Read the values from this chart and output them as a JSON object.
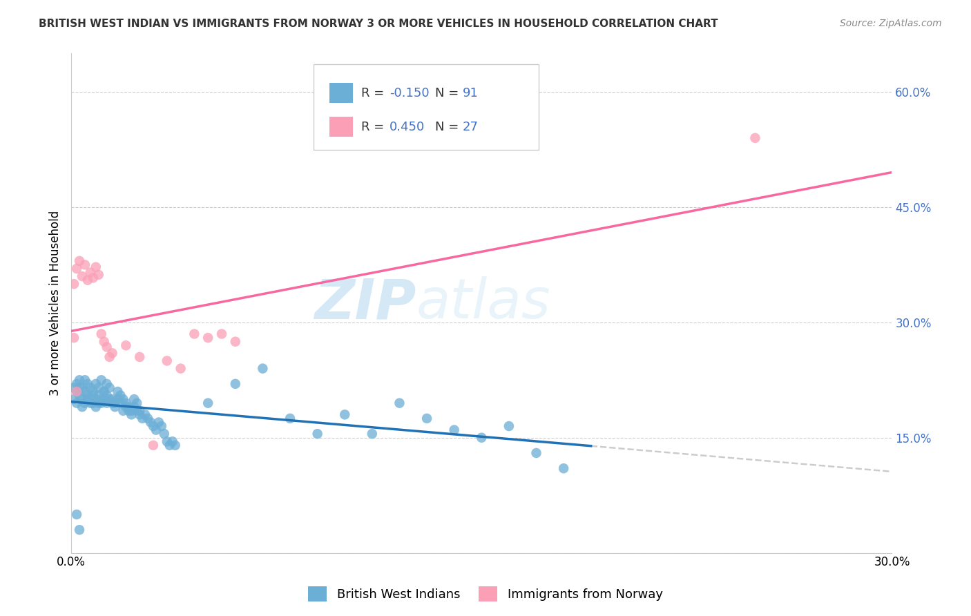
{
  "title": "BRITISH WEST INDIAN VS IMMIGRANTS FROM NORWAY 3 OR MORE VEHICLES IN HOUSEHOLD CORRELATION CHART",
  "source": "Source: ZipAtlas.com",
  "ylabel": "3 or more Vehicles in Household",
  "xmin": 0.0,
  "xmax": 0.3,
  "ymin": 0.0,
  "ymax": 0.65,
  "yticks": [
    0.0,
    0.15,
    0.3,
    0.45,
    0.6
  ],
  "ytick_labels": [
    "",
    "15.0%",
    "30.0%",
    "45.0%",
    "60.0%"
  ],
  "xtick_vals": [
    0.0,
    0.05,
    0.1,
    0.15,
    0.2,
    0.25,
    0.3
  ],
  "xtick_labels": [
    "0.0%",
    "",
    "",
    "",
    "",
    "",
    "30.0%"
  ],
  "blue_R": -0.15,
  "blue_N": 91,
  "pink_R": 0.45,
  "pink_N": 27,
  "blue_color": "#6baed6",
  "pink_color": "#fa9fb5",
  "blue_line_color": "#2171b5",
  "pink_line_color": "#f768a1",
  "dash_line_color": "#cccccc",
  "legend1_label": "British West Indians",
  "legend2_label": "Immigrants from Norway",
  "watermark_zip": "ZIP",
  "watermark_atlas": "atlas",
  "blue_scatter_x": [
    0.001,
    0.002,
    0.002,
    0.003,
    0.003,
    0.004,
    0.004,
    0.005,
    0.005,
    0.006,
    0.006,
    0.007,
    0.007,
    0.008,
    0.008,
    0.009,
    0.009,
    0.01,
    0.01,
    0.011,
    0.011,
    0.012,
    0.012,
    0.013,
    0.013,
    0.014,
    0.015,
    0.016,
    0.017,
    0.018,
    0.019,
    0.02,
    0.021,
    0.022,
    0.023,
    0.024,
    0.025,
    0.026,
    0.027,
    0.028,
    0.029,
    0.03,
    0.031,
    0.032,
    0.033,
    0.034,
    0.035,
    0.036,
    0.037,
    0.038,
    0.001,
    0.002,
    0.003,
    0.004,
    0.005,
    0.006,
    0.007,
    0.008,
    0.009,
    0.01,
    0.011,
    0.012,
    0.013,
    0.014,
    0.015,
    0.016,
    0.017,
    0.018,
    0.019,
    0.02,
    0.021,
    0.022,
    0.023,
    0.024,
    0.025,
    0.05,
    0.06,
    0.07,
    0.08,
    0.09,
    0.1,
    0.11,
    0.12,
    0.13,
    0.14,
    0.15,
    0.16,
    0.17,
    0.18,
    0.002,
    0.003
  ],
  "blue_scatter_y": [
    0.2,
    0.21,
    0.195,
    0.205,
    0.215,
    0.19,
    0.2,
    0.195,
    0.21,
    0.2,
    0.205,
    0.195,
    0.2,
    0.195,
    0.205,
    0.19,
    0.2,
    0.195,
    0.205,
    0.2,
    0.195,
    0.2,
    0.21,
    0.195,
    0.205,
    0.2,
    0.195,
    0.19,
    0.2,
    0.195,
    0.185,
    0.19,
    0.185,
    0.18,
    0.19,
    0.185,
    0.18,
    0.175,
    0.18,
    0.175,
    0.17,
    0.165,
    0.16,
    0.17,
    0.165,
    0.155,
    0.145,
    0.14,
    0.145,
    0.14,
    0.215,
    0.22,
    0.225,
    0.215,
    0.225,
    0.22,
    0.215,
    0.21,
    0.22,
    0.215,
    0.225,
    0.21,
    0.22,
    0.215,
    0.2,
    0.195,
    0.21,
    0.205,
    0.2,
    0.195,
    0.19,
    0.185,
    0.2,
    0.195,
    0.185,
    0.195,
    0.22,
    0.24,
    0.175,
    0.155,
    0.18,
    0.155,
    0.195,
    0.175,
    0.16,
    0.15,
    0.165,
    0.13,
    0.11,
    0.05,
    0.03
  ],
  "pink_scatter_x": [
    0.001,
    0.002,
    0.003,
    0.004,
    0.005,
    0.006,
    0.007,
    0.008,
    0.009,
    0.01,
    0.011,
    0.012,
    0.013,
    0.014,
    0.015,
    0.02,
    0.025,
    0.03,
    0.035,
    0.04,
    0.045,
    0.05,
    0.055,
    0.06,
    0.25,
    0.001,
    0.002
  ],
  "pink_scatter_y": [
    0.35,
    0.37,
    0.38,
    0.36,
    0.375,
    0.355,
    0.365,
    0.358,
    0.372,
    0.362,
    0.285,
    0.275,
    0.268,
    0.255,
    0.26,
    0.27,
    0.255,
    0.14,
    0.25,
    0.24,
    0.285,
    0.28,
    0.285,
    0.275,
    0.54,
    0.28,
    0.21
  ]
}
